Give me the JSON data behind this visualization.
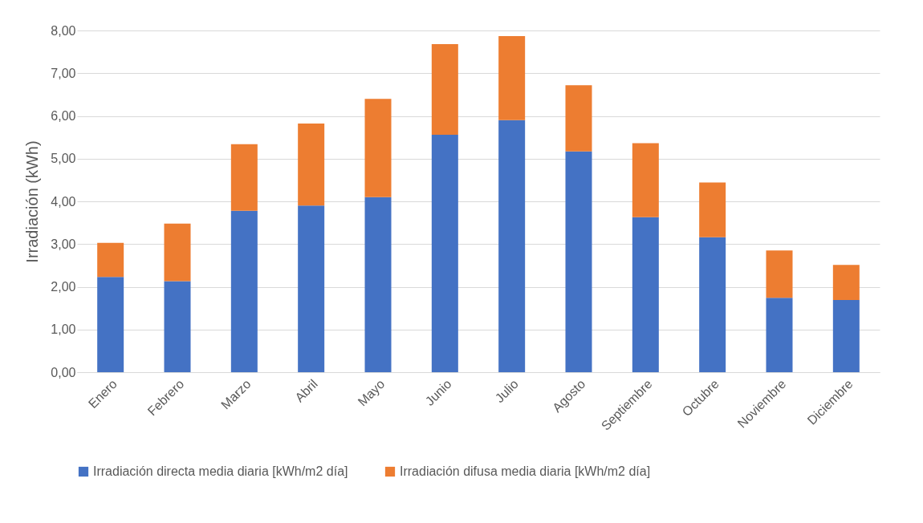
{
  "chart_data": {
    "type": "bar",
    "stacked": true,
    "ylabel": "Irradiación (kWh)",
    "categories": [
      "Enero",
      "Febrero",
      "Marzo",
      "Abril",
      "Mayo",
      "Junio",
      "Julio",
      "Agosto",
      "Septiembre",
      "Octubre",
      "Noviembre",
      "Diciembre"
    ],
    "series": [
      {
        "name": "Irradiación directa media diaria  [kWh/m2 día]",
        "color": "#4472c4",
        "values": [
          2.23,
          2.13,
          3.78,
          3.9,
          4.1,
          5.56,
          5.9,
          5.17,
          3.63,
          3.16,
          1.74,
          1.69
        ]
      },
      {
        "name": "Irradiación difusa media diaria  [kWh/m2 día]",
        "color": "#ed7d31",
        "values": [
          0.8,
          1.35,
          1.56,
          1.92,
          2.3,
          2.12,
          1.97,
          1.55,
          1.73,
          1.28,
          1.11,
          0.82
        ]
      }
    ],
    "ylim": [
      0,
      8
    ],
    "yticks": [
      {
        "value": 0,
        "label": "0,00"
      },
      {
        "value": 1,
        "label": "1,00"
      },
      {
        "value": 2,
        "label": "2,00"
      },
      {
        "value": 3,
        "label": "3,00"
      },
      {
        "value": 4,
        "label": "4,00"
      },
      {
        "value": 5,
        "label": "5,00"
      },
      {
        "value": 6,
        "label": "6,00"
      },
      {
        "value": 7,
        "label": "7,00"
      },
      {
        "value": 8,
        "label": "8,00"
      }
    ],
    "grid": "y",
    "legend": "bottom"
  }
}
